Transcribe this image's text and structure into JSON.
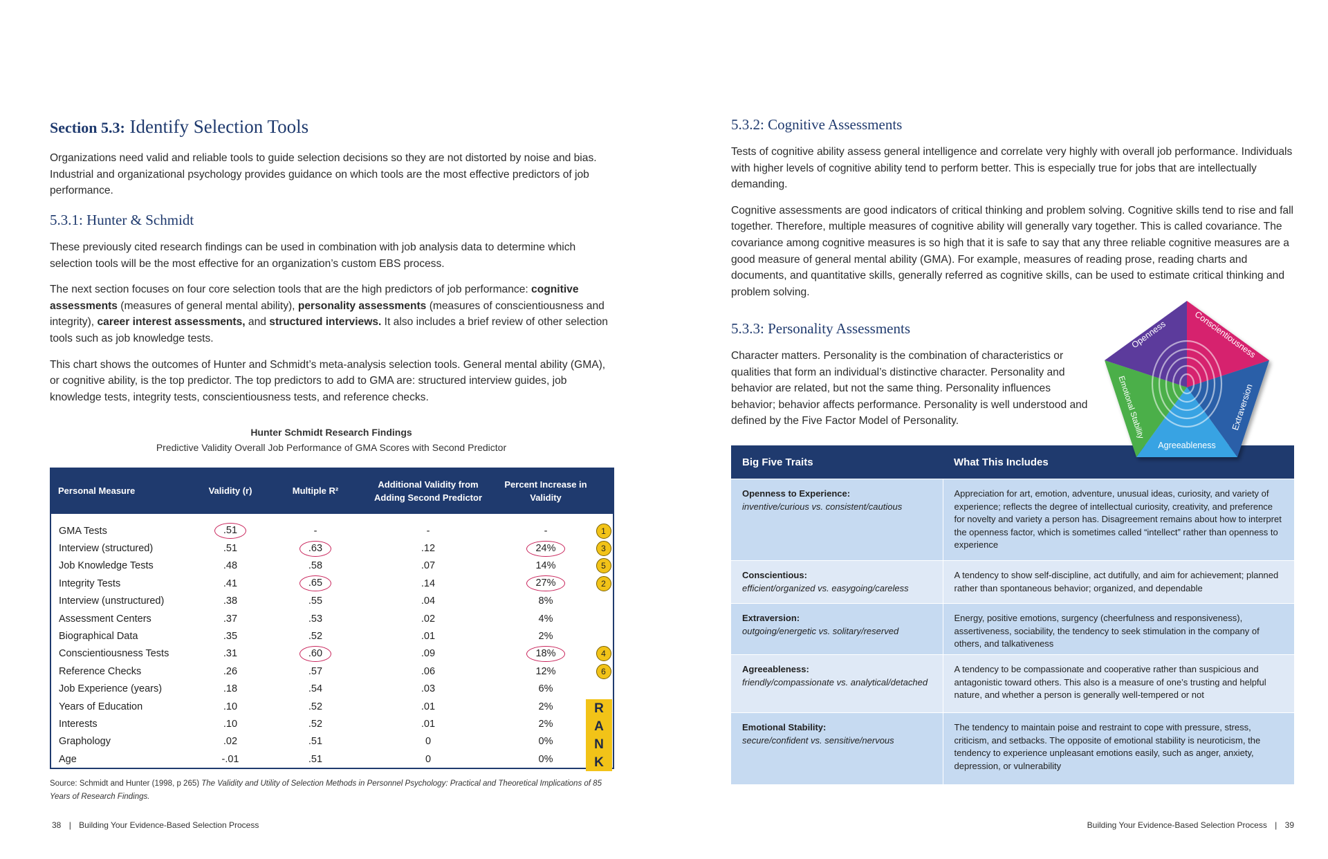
{
  "left_page": {
    "section_label": "Section 5.3:",
    "section_title": "Identify Selection Tools",
    "intro": "Organizations need valid and reliable tools to guide selection decisions so they are not distorted by noise and bias. Industrial and organizational psychology provides guidance on which tools are the most effective predictors of job performance.",
    "subsection_title": "5.3.1: Hunter & Schmidt",
    "paragraphs": [
      [
        {
          "text": "These previously cited research findings can be used in combination with job analysis data to determine which selection tools will be the most effective for an organization’s custom EBS process."
        }
      ],
      [
        {
          "text": "The next section focuses on four core selection tools that are the high predictors of job performance: "
        },
        {
          "text": "cognitive assessments",
          "bold": true
        },
        {
          "text": " (measures of general mental ability), "
        },
        {
          "text": "personality assessments",
          "bold": true
        },
        {
          "text": " (measures of conscientiousness and integrity), "
        },
        {
          "text": "career interest assessments,",
          "bold": true
        },
        {
          "text": " and "
        },
        {
          "text": "structured interviews.",
          "bold": true
        },
        {
          "text": " It also includes a brief review of other selection tools such as job knowledge tests."
        }
      ],
      [
        {
          "text": "This chart shows the outcomes of Hunter and Schmidt’s meta-analysis selection tools. General mental ability (GMA), or cognitive ability, is the top predictor. The top predictors to add to GMA are: structured interview guides, job knowledge tests, integrity tests, conscientiousness tests, and reference checks."
        }
      ]
    ],
    "chart_title": "Hunter Schmidt Research Findings",
    "chart_subtitle": "Predictive Validity Overall Job Performance of GMA Scores with Second Predictor",
    "table": {
      "header": [
        "Personal Measure",
        "Validity (r)",
        "Multiple R²",
        "Additional Validity from Adding Second Predictor",
        "Percent Increase in Validity"
      ],
      "rows": [
        {
          "measure": "GMA Tests",
          "validity": ".51",
          "multiple_r": "-",
          "additional": "-",
          "percent": "-",
          "rank": 1,
          "circled": [
            "validity"
          ]
        },
        {
          "measure": "Interview (structured)",
          "validity": ".51",
          "multiple_r": ".63",
          "additional": ".12",
          "percent": "24%",
          "rank": 3,
          "circled": [
            "multiple_r",
            "percent"
          ]
        },
        {
          "measure": "Job Knowledge Tests",
          "validity": ".48",
          "multiple_r": ".58",
          "additional": ".07",
          "percent": "14%",
          "rank": 5,
          "circled": []
        },
        {
          "measure": "Integrity Tests",
          "validity": ".41",
          "multiple_r": ".65",
          "additional": ".14",
          "percent": "27%",
          "rank": 2,
          "circled": [
            "multiple_r",
            "percent"
          ]
        },
        {
          "measure": "Interview (unstructured)",
          "validity": ".38",
          "multiple_r": ".55",
          "additional": ".04",
          "percent": "8%",
          "circled": []
        },
        {
          "measure": "Assessment Centers",
          "validity": ".37",
          "multiple_r": ".53",
          "additional": ".02",
          "percent": "4%",
          "circled": []
        },
        {
          "measure": "Biographical Data",
          "validity": ".35",
          "multiple_r": ".52",
          "additional": ".01",
          "percent": "2%",
          "circled": []
        },
        {
          "measure": "Conscientiousness Tests",
          "validity": ".31",
          "multiple_r": ".60",
          "additional": ".09",
          "percent": "18%",
          "rank": 4,
          "circled": [
            "multiple_r",
            "percent"
          ]
        },
        {
          "measure": "Reference Checks",
          "validity": ".26",
          "multiple_r": ".57",
          "additional": ".06",
          "percent": "12%",
          "rank": 6,
          "circled": []
        },
        {
          "measure": "Job Experience (years)",
          "validity": ".18",
          "multiple_r": ".54",
          "additional": ".03",
          "percent": "6%",
          "circled": []
        },
        {
          "measure": "Years of Education",
          "validity": ".10",
          "multiple_r": ".52",
          "additional": ".01",
          "percent": "2%",
          "circled": []
        },
        {
          "measure": "Interests",
          "validity": ".10",
          "multiple_r": ".52",
          "additional": ".01",
          "percent": "2%",
          "circled": []
        },
        {
          "measure": "Graphology",
          "validity": ".02",
          "multiple_r": ".51",
          "additional": "0",
          "percent": "0%",
          "circled": []
        },
        {
          "measure": "Age",
          "validity": "-.01",
          "multiple_r": ".51",
          "additional": "0",
          "percent": "0%",
          "circled": []
        }
      ],
      "rank_label": "RANK"
    },
    "source": [
      {
        "text": "Source: Schmidt and Hunter (1998, p 265) "
      },
      {
        "text": "The Validity and Utility of Selection Methods in Personnel Psychology: Practical and Theoretical Implications of 85 Years of Research Findings.",
        "italic": true
      }
    ],
    "footer": {
      "page_number": "38",
      "title": "Building Your Evidence-Based Selection Process"
    }
  },
  "right_page": {
    "cognitive_title": "5.3.2: Cognitive Assessments",
    "cognitive_paragraphs": [
      "Tests of cognitive ability assess general intelligence and correlate very highly with overall job performance. Individuals with higher levels of cognitive ability tend to perform better. This is especially true for jobs that are intellectually demanding.",
      "Cognitive assessments are good indicators of critical thinking and problem solving. Cognitive skills tend to rise and fall together. Therefore, multiple measures of cognitive ability will generally vary together. This is called covariance. The covariance among cognitive measures is so high that it is safe to say that any three reliable cognitive measures are a good measure of general mental ability (GMA). For example, measures of reading prose, reading charts and documents, and quantitative skills, generally referred as cognitive skills, can be used to estimate critical thinking and problem solving."
    ],
    "personality_title": "5.3.3: Personality Assessments",
    "personality_paragraph": "Character matters. Personality is the combination of characteristics or qualities that form an individual’s distinctive character. Personality and behavior are related, but not the same thing. Personality influences behavior; behavior affects performance. Personality is well understood and defined by the Five Factor Model of Personality.",
    "pentagon_labels": [
      "Openness",
      "Conscientiousness",
      "Extraversion",
      "Agreeableness",
      "Emotional Stability"
    ],
    "traits_table": {
      "header": [
        "Big Five Traits",
        "What This Includes"
      ],
      "rows": [
        {
          "trait": "Openness to Experience:",
          "range": "inventive/curious vs. consistent/cautious",
          "description": "Appreciation for art, emotion, adventure, unusual ideas, curiosity, and variety of experience; reflects the degree of intellectual curiosity, creativity, and preference for novelty and variety a person has. Disagreement remains about how to interpret the openness factor, which is sometimes called “intellect” rather than openness to experience"
        },
        {
          "trait": "Conscientious:",
          "range": "efficient/organized vs. easygoing/careless",
          "description": "A tendency to show self-discipline, act dutifully, and aim for achievement; planned rather than spontaneous behavior; organized, and dependable"
        },
        {
          "trait": "Extraversion:",
          "range": "outgoing/energetic vs. solitary/reserved",
          "description": "Energy, positive emotions, surgency (cheerfulness and responsiveness), assertiveness, sociability, the tendency to seek stimulation in the company of others, and talkativeness"
        },
        {
          "trait": "Agreeableness:",
          "range": "friendly/compassionate vs. analytical/detached",
          "description": "A tendency to be compassionate and cooperative rather than suspicious and antagonistic toward others. This also is a measure of one’s trusting and helpful nature, and whether a person is generally well-tempered or not"
        },
        {
          "trait": "Emotional Stability:",
          "range": "secure/confident vs. sensitive/nervous",
          "description": "The tendency to maintain poise and restraint to cope with pressure, stress, criticism, and setbacks. The opposite of emotional stability is neuroticism, the tendency to experience unpleasant emotions easily, such as anger, anxiety, depression, or vulnerability"
        }
      ]
    },
    "footer": {
      "title": "Building Your Evidence-Based Selection Process",
      "page_number": "39"
    }
  }
}
